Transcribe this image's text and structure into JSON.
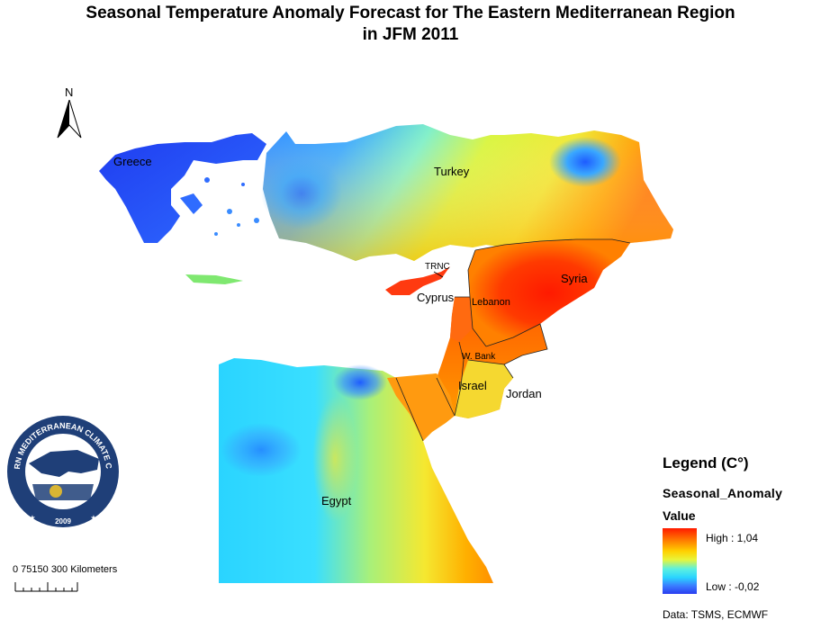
{
  "title": {
    "line1": "Seasonal Temperature Anomaly Forecast for  The Eastern Mediterranean Region",
    "line2": "in JFM 2011"
  },
  "north_arrow": {
    "label": "N",
    "icon": "north-arrow-icon"
  },
  "labels": {
    "greece": "Greece",
    "turkey": "Turkey",
    "trnc": "TRNC",
    "cyprus": "Cyprus",
    "syria": "Syria",
    "lebanon": "Lebanon",
    "wbank": "W. Bank",
    "israel": "Israel",
    "jordan": "Jordan",
    "egypt": "Egypt"
  },
  "legend": {
    "heading": "Legend (C°)",
    "layer": "Seasonal_Anomaly",
    "value": "Value",
    "high": "High : 1,04",
    "low": "Low : -0,02",
    "colors": [
      "#ff1a00",
      "#ff7a00",
      "#ffd000",
      "#e8f53a",
      "#5cf0e0",
      "#2ad4ff",
      "#3a7bff",
      "#2a3cf0"
    ]
  },
  "scale": {
    "label": "0  75150   300 Kilometers"
  },
  "logo": {
    "text": "EASTERN MEDITERRANEAN CLIMATE CENTRE",
    "year": "2009"
  },
  "source": "Data:  TSMS, ECMWF"
}
